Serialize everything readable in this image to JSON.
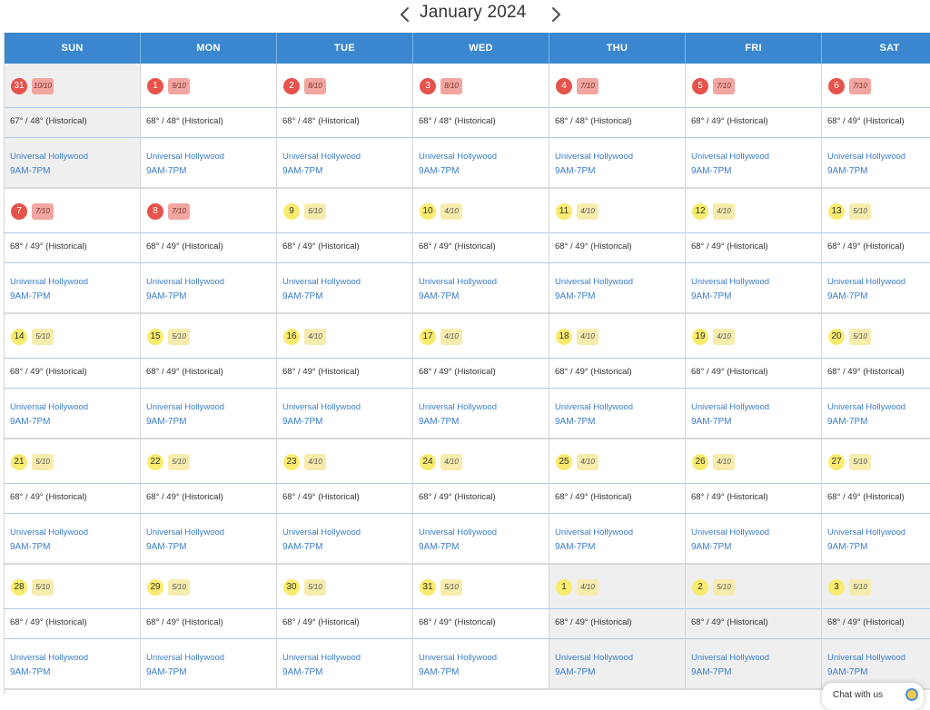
{
  "nav": {
    "month_title": "January 2024",
    "prev_icon": "chevron-left-icon",
    "next_icon": "chevron-right-icon"
  },
  "days_of_week": [
    "SUN",
    "MON",
    "TUE",
    "WED",
    "THU",
    "FRI",
    "SAT"
  ],
  "colors": {
    "header": "#3a87cf",
    "crowd_high": "#e5534b",
    "crowd_low": "#f9eb6d",
    "link": "#3a7dcc"
  },
  "weeks": [
    [
      {
        "day": "31",
        "crowd": "10/10",
        "level": "red",
        "other": true,
        "weather": "67° / 48° (Historical)",
        "park": "Universal Hollywood",
        "hours": "9AM-7PM"
      },
      {
        "day": "1",
        "crowd": "9/10",
        "level": "red",
        "other": false,
        "weather": "68° / 48° (Historical)",
        "park": "Universal Hollywood",
        "hours": "9AM-7PM"
      },
      {
        "day": "2",
        "crowd": "8/10",
        "level": "red",
        "other": false,
        "weather": "68° / 48° (Historical)",
        "park": "Universal Hollywood",
        "hours": "9AM-7PM"
      },
      {
        "day": "3",
        "crowd": "8/10",
        "level": "red",
        "other": false,
        "weather": "68° / 48° (Historical)",
        "park": "Universal Hollywood",
        "hours": "9AM-7PM"
      },
      {
        "day": "4",
        "crowd": "7/10",
        "level": "red",
        "other": false,
        "weather": "68° / 48° (Historical)",
        "park": "Universal Hollywood",
        "hours": "9AM-7PM"
      },
      {
        "day": "5",
        "crowd": "7/10",
        "level": "red",
        "other": false,
        "weather": "68° / 49° (Historical)",
        "park": "Universal Hollywood",
        "hours": "9AM-7PM"
      },
      {
        "day": "6",
        "crowd": "7/10",
        "level": "red",
        "other": false,
        "weather": "68° / 49° (Historical)",
        "park": "Universal Hollywood",
        "hours": "9AM-7PM"
      }
    ],
    [
      {
        "day": "7",
        "crowd": "7/10",
        "level": "red",
        "other": false,
        "weather": "68° / 49° (Historical)",
        "park": "Universal Hollywood",
        "hours": "9AM-7PM"
      },
      {
        "day": "8",
        "crowd": "7/10",
        "level": "red",
        "other": false,
        "weather": "68° / 49° (Historical)",
        "park": "Universal Hollywood",
        "hours": "9AM-7PM"
      },
      {
        "day": "9",
        "crowd": "6/10",
        "level": "yellow",
        "other": false,
        "weather": "68° / 49° (Historical)",
        "park": "Universal Hollywood",
        "hours": "9AM-7PM"
      },
      {
        "day": "10",
        "crowd": "4/10",
        "level": "yellow",
        "other": false,
        "weather": "68° / 49° (Historical)",
        "park": "Universal Hollywood",
        "hours": "9AM-7PM"
      },
      {
        "day": "11",
        "crowd": "4/10",
        "level": "yellow",
        "other": false,
        "weather": "68° / 49° (Historical)",
        "park": "Universal Hollywood",
        "hours": "9AM-7PM"
      },
      {
        "day": "12",
        "crowd": "4/10",
        "level": "yellow",
        "other": false,
        "weather": "68° / 49° (Historical)",
        "park": "Universal Hollywood",
        "hours": "9AM-7PM"
      },
      {
        "day": "13",
        "crowd": "5/10",
        "level": "yellow",
        "other": false,
        "weather": "68° / 49° (Historical)",
        "park": "Universal Hollywood",
        "hours": "9AM-7PM"
      }
    ],
    [
      {
        "day": "14",
        "crowd": "5/10",
        "level": "yellow",
        "other": false,
        "weather": "68° / 49° (Historical)",
        "park": "Universal Hollywood",
        "hours": "9AM-7PM"
      },
      {
        "day": "15",
        "crowd": "5/10",
        "level": "yellow",
        "other": false,
        "weather": "68° / 49° (Historical)",
        "park": "Universal Hollywood",
        "hours": "9AM-7PM"
      },
      {
        "day": "16",
        "crowd": "4/10",
        "level": "yellow",
        "other": false,
        "weather": "68° / 49° (Historical)",
        "park": "Universal Hollywood",
        "hours": "9AM-7PM"
      },
      {
        "day": "17",
        "crowd": "4/10",
        "level": "yellow",
        "other": false,
        "weather": "68° / 49° (Historical)",
        "park": "Universal Hollywood",
        "hours": "9AM-7PM"
      },
      {
        "day": "18",
        "crowd": "4/10",
        "level": "yellow",
        "other": false,
        "weather": "68° / 49° (Historical)",
        "park": "Universal Hollywood",
        "hours": "9AM-7PM"
      },
      {
        "day": "19",
        "crowd": "4/10",
        "level": "yellow",
        "other": false,
        "weather": "68° / 49° (Historical)",
        "park": "Universal Hollywood",
        "hours": "9AM-7PM"
      },
      {
        "day": "20",
        "crowd": "5/10",
        "level": "yellow",
        "other": false,
        "weather": "68° / 49° (Historical)",
        "park": "Universal Hollywood",
        "hours": "9AM-7PM"
      }
    ],
    [
      {
        "day": "21",
        "crowd": "5/10",
        "level": "yellow",
        "other": false,
        "weather": "68° / 49° (Historical)",
        "park": "Universal Hollywood",
        "hours": "9AM-7PM"
      },
      {
        "day": "22",
        "crowd": "5/10",
        "level": "yellow",
        "other": false,
        "weather": "68° / 49° (Historical)",
        "park": "Universal Hollywood",
        "hours": "9AM-7PM"
      },
      {
        "day": "23",
        "crowd": "4/10",
        "level": "yellow",
        "other": false,
        "weather": "68° / 49° (Historical)",
        "park": "Universal Hollywood",
        "hours": "9AM-7PM"
      },
      {
        "day": "24",
        "crowd": "4/10",
        "level": "yellow",
        "other": false,
        "weather": "68° / 49° (Historical)",
        "park": "Universal Hollywood",
        "hours": "9AM-7PM"
      },
      {
        "day": "25",
        "crowd": "4/10",
        "level": "yellow",
        "other": false,
        "weather": "68° / 49° (Historical)",
        "park": "Universal Hollywood",
        "hours": "9AM-7PM"
      },
      {
        "day": "26",
        "crowd": "4/10",
        "level": "yellow",
        "other": false,
        "weather": "68° / 49° (Historical)",
        "park": "Universal Hollywood",
        "hours": "9AM-7PM"
      },
      {
        "day": "27",
        "crowd": "5/10",
        "level": "yellow",
        "other": false,
        "weather": "68° / 49° (Historical)",
        "park": "Universal Hollywood",
        "hours": "9AM-7PM"
      }
    ],
    [
      {
        "day": "28",
        "crowd": "5/10",
        "level": "yellow",
        "other": false,
        "weather": "68° / 49° (Historical)",
        "park": "Universal Hollywood",
        "hours": "9AM-7PM"
      },
      {
        "day": "29",
        "crowd": "5/10",
        "level": "yellow",
        "other": false,
        "weather": "68° / 49° (Historical)",
        "park": "Universal Hollywood",
        "hours": "9AM-7PM"
      },
      {
        "day": "30",
        "crowd": "5/10",
        "level": "yellow",
        "other": false,
        "weather": "68° / 49° (Historical)",
        "park": "Universal Hollywood",
        "hours": "9AM-7PM"
      },
      {
        "day": "31",
        "crowd": "5/10",
        "level": "yellow",
        "other": false,
        "weather": "68° / 49° (Historical)",
        "park": "Universal Hollywood",
        "hours": "9AM-7PM"
      },
      {
        "day": "1",
        "crowd": "4/10",
        "level": "yellow",
        "other": true,
        "weather": "68° / 49° (Historical)",
        "park": "Universal Hollywood",
        "hours": "9AM-7PM"
      },
      {
        "day": "2",
        "crowd": "5/10",
        "level": "yellow",
        "other": true,
        "weather": "68° / 49° (Historical)",
        "park": "Universal Hollywood",
        "hours": "9AM-7PM"
      },
      {
        "day": "3",
        "crowd": "5/10",
        "level": "yellow",
        "other": true,
        "weather": "68° / 49° (Historical)",
        "park": "Universal Hollywood",
        "hours": "9AM-7PM"
      }
    ]
  ],
  "chat": {
    "label": "Chat with us"
  }
}
